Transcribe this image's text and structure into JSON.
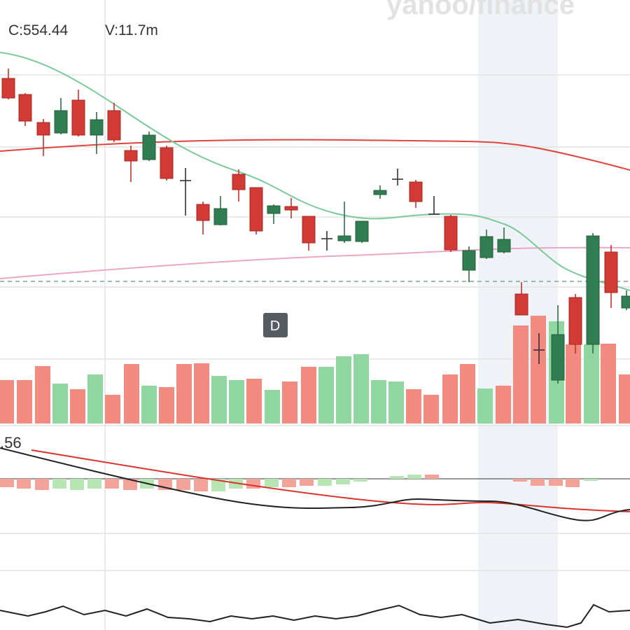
{
  "header": {
    "close": "C:554.44",
    "volume": "V:11.7m"
  },
  "watermark": "yahoo/finance",
  "interval_badge": "D",
  "indicator_label": ".56"
}
